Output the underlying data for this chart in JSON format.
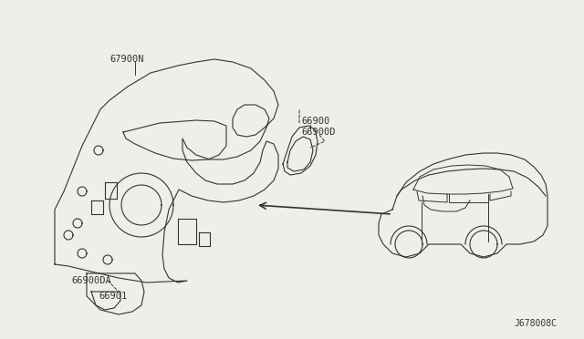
{
  "bg_color": "#f0eeea",
  "line_color": "#333333",
  "text_color": "#333333",
  "diagram_id": "J678008C",
  "labels": {
    "part1": "67900N",
    "part2": "66900",
    "part3": "66900D",
    "part4": "66900DA",
    "part5": "66901"
  },
  "figsize": [
    6.4,
    3.72
  ],
  "dpi": 100
}
